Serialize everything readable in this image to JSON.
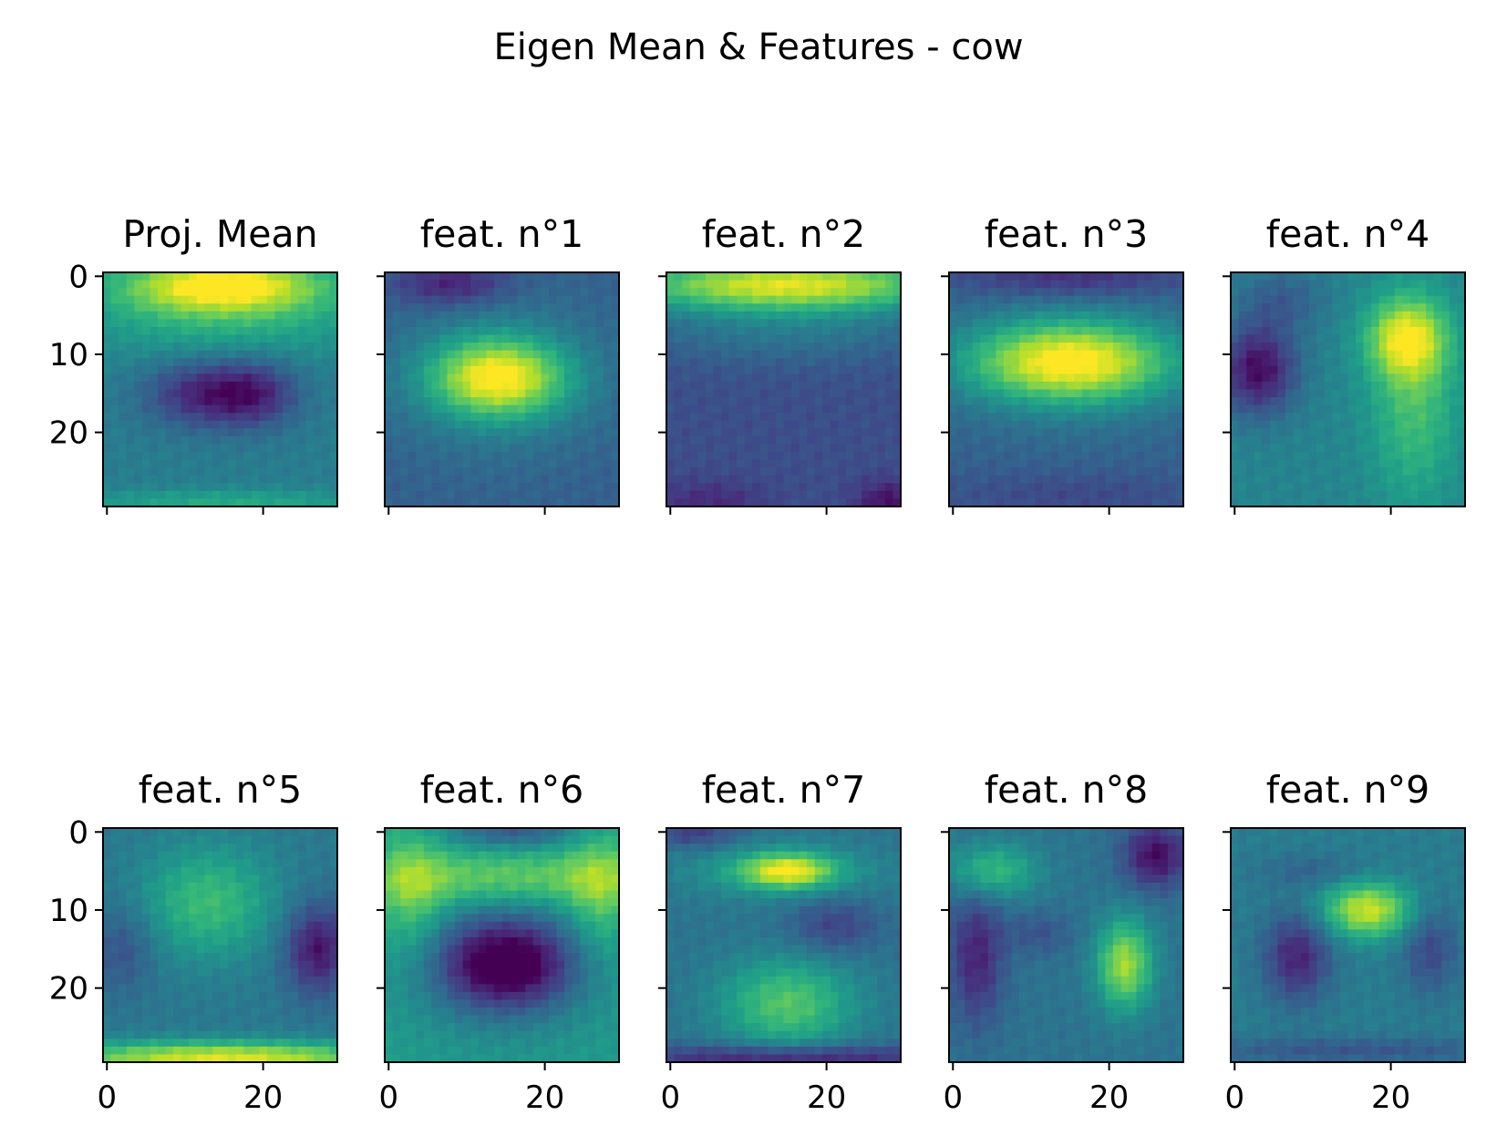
{
  "figure": {
    "suptitle": "Eigen Mean & Features - cow"
  },
  "chart_data": {
    "type": "heatmap",
    "colormap": "viridis",
    "colormap_stops": [
      "#440154",
      "#482878",
      "#3e4a89",
      "#31688e",
      "#26828e",
      "#1f9e89",
      "#35b779",
      "#6ece58",
      "#b5de2b",
      "#fde725"
    ],
    "image_size": [
      30,
      30
    ],
    "axes": {
      "x_ticks": [
        0,
        20
      ],
      "y_ticks": [
        0,
        10,
        20
      ],
      "xlim": [
        -0.5,
        29.5
      ],
      "ylim": [
        29.5,
        -0.5
      ],
      "shared_x": true,
      "shared_y": true
    },
    "panels": [
      {
        "title": "Proj. Mean",
        "base": 0.42,
        "blobs": [
          {
            "x": 15,
            "y": 1,
            "sx": 9,
            "sy": 2.5,
            "a": 0.55
          },
          {
            "x": 15,
            "y": 5,
            "sx": 14,
            "sy": 4,
            "a": 0.2
          },
          {
            "x": 12,
            "y": 15,
            "sx": 5,
            "sy": 3,
            "a": -0.3
          },
          {
            "x": 19,
            "y": 15,
            "sx": 4,
            "sy": 3,
            "a": -0.28
          },
          {
            "x": 15,
            "y": 29,
            "sx": 14,
            "sy": 1.2,
            "a": 0.18
          }
        ]
      },
      {
        "title": "feat. n°1",
        "base": 0.3,
        "blobs": [
          {
            "x": 14,
            "y": 13,
            "sx": 6,
            "sy": 3.5,
            "a": 0.6
          },
          {
            "x": 14,
            "y": 13,
            "sx": 10,
            "sy": 7,
            "a": 0.15
          },
          {
            "x": 8,
            "y": 1,
            "sx": 5,
            "sy": 2,
            "a": -0.22
          }
        ]
      },
      {
        "title": "feat. n°2",
        "base": 0.24,
        "blobs": [
          {
            "x": 15,
            "y": 1,
            "sx": 16,
            "sy": 2.5,
            "a": 0.7
          },
          {
            "x": 15,
            "y": 7,
            "sx": 14,
            "sy": 3,
            "a": 0.15
          },
          {
            "x": 28,
            "y": 29,
            "sx": 3,
            "sy": 2,
            "a": -0.2
          },
          {
            "x": 5,
            "y": 29,
            "sx": 5,
            "sy": 2,
            "a": -0.12
          }
        ]
      },
      {
        "title": "feat. n°3",
        "base": 0.3,
        "blobs": [
          {
            "x": 15,
            "y": 11,
            "sx": 9,
            "sy": 3.5,
            "a": 0.6
          },
          {
            "x": 15,
            "y": 11,
            "sx": 12,
            "sy": 6,
            "a": 0.15
          },
          {
            "x": 15,
            "y": 0,
            "sx": 10,
            "sy": 2,
            "a": -0.18
          },
          {
            "x": 15,
            "y": 28,
            "sx": 12,
            "sy": 2,
            "a": -0.08
          }
        ]
      },
      {
        "title": "feat. n°4",
        "base": 0.45,
        "blobs": [
          {
            "x": 22,
            "y": 8,
            "sx": 3.5,
            "sy": 3.5,
            "a": 0.45
          },
          {
            "x": 23,
            "y": 16,
            "sx": 4,
            "sy": 9,
            "a": 0.25
          },
          {
            "x": 3,
            "y": 12,
            "sx": 3.5,
            "sy": 4,
            "a": -0.42
          },
          {
            "x": 6,
            "y": 3,
            "sx": 4,
            "sy": 3,
            "a": -0.15
          }
        ]
      },
      {
        "title": "feat. n°5",
        "base": 0.4,
        "blobs": [
          {
            "x": 13,
            "y": 9,
            "sx": 6,
            "sy": 5,
            "a": 0.28
          },
          {
            "x": 15,
            "y": 29,
            "sx": 16,
            "sy": 1.5,
            "a": 0.55
          },
          {
            "x": 27,
            "y": 15,
            "sx": 3,
            "sy": 4,
            "a": -0.35
          },
          {
            "x": 2,
            "y": 15,
            "sx": 3,
            "sy": 4,
            "a": -0.15
          }
        ]
      },
      {
        "title": "feat. n°6",
        "base": 0.55,
        "blobs": [
          {
            "x": 15,
            "y": 17,
            "sx": 6,
            "sy": 4,
            "a": -0.52
          },
          {
            "x": 15,
            "y": 16,
            "sx": 10,
            "sy": 7,
            "a": -0.15
          },
          {
            "x": 15,
            "y": 6,
            "sx": 15,
            "sy": 2.5,
            "a": 0.25
          },
          {
            "x": 3,
            "y": 8,
            "sx": 3,
            "sy": 6,
            "a": 0.2
          },
          {
            "x": 27,
            "y": 8,
            "sx": 3,
            "sy": 6,
            "a": 0.2
          },
          {
            "x": 16,
            "y": 0,
            "sx": 6,
            "sy": 1.5,
            "a": -0.25
          }
        ]
      },
      {
        "title": "feat. n°7",
        "base": 0.38,
        "blobs": [
          {
            "x": 15,
            "y": 5,
            "sx": 4,
            "sy": 1.5,
            "a": 0.48
          },
          {
            "x": 14,
            "y": 5,
            "sx": 9,
            "sy": 2.5,
            "a": 0.18
          },
          {
            "x": 15,
            "y": 22,
            "sx": 6,
            "sy": 4,
            "a": 0.35
          },
          {
            "x": 21,
            "y": 12,
            "sx": 4,
            "sy": 2.5,
            "a": -0.18
          },
          {
            "x": 15,
            "y": 29,
            "sx": 16,
            "sy": 1.2,
            "a": -0.3
          },
          {
            "x": 3,
            "y": 0,
            "sx": 4,
            "sy": 1.5,
            "a": -0.2
          }
        ]
      },
      {
        "title": "feat. n°8",
        "base": 0.38,
        "blobs": [
          {
            "x": 5,
            "y": 5,
            "sx": 4,
            "sy": 2.5,
            "a": 0.3
          },
          {
            "x": 22,
            "y": 17,
            "sx": 2.5,
            "sy": 4,
            "a": 0.48
          },
          {
            "x": 26,
            "y": 3,
            "sx": 3,
            "sy": 3,
            "a": -0.35
          },
          {
            "x": 3,
            "y": 16,
            "sx": 2.5,
            "sy": 6,
            "a": -0.28
          },
          {
            "x": 11,
            "y": 13,
            "sx": 3,
            "sy": 2,
            "a": -0.12
          }
        ]
      },
      {
        "title": "feat. n°9",
        "base": 0.42,
        "blobs": [
          {
            "x": 17,
            "y": 10,
            "sx": 4,
            "sy": 2.5,
            "a": 0.5
          },
          {
            "x": 8,
            "y": 16,
            "sx": 3,
            "sy": 4,
            "a": -0.32
          },
          {
            "x": 25,
            "y": 15,
            "sx": 2.5,
            "sy": 4,
            "a": -0.2
          },
          {
            "x": 15,
            "y": 28,
            "sx": 16,
            "sy": 1.2,
            "a": -0.15
          },
          {
            "x": 10,
            "y": 5,
            "sx": 5,
            "sy": 1.5,
            "a": -0.1
          }
        ]
      }
    ]
  }
}
